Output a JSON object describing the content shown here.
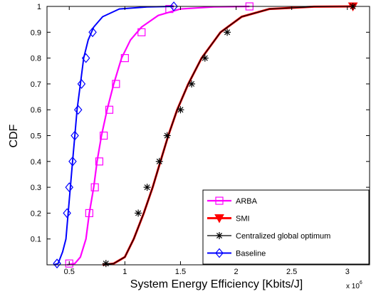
{
  "chart_data": {
    "type": "line",
    "xlabel": "System Energy Efficiency [Kbits/J]",
    "ylabel": "CDF",
    "x_multiplier_base": "x 10",
    "x_multiplier_exp": "6",
    "xlim": [
      0.3,
      3.2
    ],
    "ylim": [
      0,
      1
    ],
    "xticks": [
      0.5,
      1,
      1.5,
      2,
      2.5,
      3
    ],
    "xtick_labels": [
      "0.5",
      "1",
      "1.5",
      "2",
      "2.5",
      "3"
    ],
    "yticks": [
      0.1,
      0.2,
      0.3,
      0.4,
      0.5,
      0.6,
      0.7,
      0.8,
      0.9,
      1
    ],
    "ytick_labels": [
      "0.1",
      "0.2",
      "0.3",
      "0.4",
      "0.5",
      "0.6",
      "0.7",
      "0.8",
      "0.9",
      "1"
    ],
    "grid": false,
    "legend_position": "bottom-right",
    "series": [
      {
        "name": "ARBA",
        "color": "#ff00ff",
        "marker": "square",
        "points": [
          [
            0.48,
            0.0
          ],
          [
            0.55,
            0.005
          ],
          [
            0.6,
            0.03
          ],
          [
            0.65,
            0.1
          ],
          [
            0.68,
            0.2
          ],
          [
            0.72,
            0.3
          ],
          [
            0.75,
            0.4
          ],
          [
            0.79,
            0.5
          ],
          [
            0.84,
            0.6
          ],
          [
            0.9,
            0.7
          ],
          [
            0.97,
            0.8
          ],
          [
            1.05,
            0.87
          ],
          [
            1.15,
            0.92
          ],
          [
            1.3,
            0.965
          ],
          [
            1.5,
            0.99
          ],
          [
            1.8,
            0.998
          ],
          [
            2.12,
            1.0
          ]
        ],
        "marker_points": [
          [
            0.5,
            0.005
          ],
          [
            0.68,
            0.2
          ],
          [
            0.73,
            0.3
          ],
          [
            0.77,
            0.4
          ],
          [
            0.81,
            0.5
          ],
          [
            0.86,
            0.6
          ],
          [
            0.92,
            0.7
          ],
          [
            1.0,
            0.8
          ],
          [
            1.15,
            0.9
          ],
          [
            1.4,
            0.99
          ],
          [
            2.12,
            1.0
          ]
        ]
      },
      {
        "name": "SMI",
        "color": "#ff0000",
        "marker": "triangle-down",
        "points": [
          [
            0.8,
            0.0
          ],
          [
            0.9,
            0.005
          ],
          [
            1.0,
            0.03
          ],
          [
            1.08,
            0.1
          ],
          [
            1.17,
            0.2
          ],
          [
            1.25,
            0.3
          ],
          [
            1.32,
            0.4
          ],
          [
            1.39,
            0.5
          ],
          [
            1.47,
            0.6
          ],
          [
            1.57,
            0.7
          ],
          [
            1.69,
            0.8
          ],
          [
            1.86,
            0.9
          ],
          [
            2.05,
            0.96
          ],
          [
            2.3,
            0.99
          ],
          [
            2.7,
            0.999
          ],
          [
            3.05,
            1.0
          ]
        ],
        "marker_points": [
          [
            3.05,
            1.0
          ]
        ]
      },
      {
        "name": "Centralized global optimum",
        "color": "#000000",
        "marker": "asterisk",
        "points": [
          [
            0.8,
            0.0
          ],
          [
            0.9,
            0.005
          ],
          [
            1.0,
            0.03
          ],
          [
            1.08,
            0.1
          ],
          [
            1.17,
            0.2
          ],
          [
            1.25,
            0.3
          ],
          [
            1.32,
            0.4
          ],
          [
            1.39,
            0.5
          ],
          [
            1.47,
            0.6
          ],
          [
            1.57,
            0.7
          ],
          [
            1.69,
            0.8
          ],
          [
            1.86,
            0.9
          ],
          [
            2.05,
            0.96
          ],
          [
            2.3,
            0.99
          ],
          [
            2.7,
            0.999
          ],
          [
            3.05,
            1.0
          ]
        ],
        "marker_points": [
          [
            0.83,
            0.005
          ],
          [
            1.12,
            0.2
          ],
          [
            1.2,
            0.3
          ],
          [
            1.31,
            0.4
          ],
          [
            1.38,
            0.5
          ],
          [
            1.5,
            0.6
          ],
          [
            1.6,
            0.7
          ],
          [
            1.72,
            0.8
          ],
          [
            1.92,
            0.9
          ],
          [
            3.05,
            1.0
          ]
        ]
      },
      {
        "name": "Baseline",
        "color": "#0000ff",
        "marker": "diamond",
        "points": [
          [
            0.36,
            0.0
          ],
          [
            0.4,
            0.005
          ],
          [
            0.44,
            0.05
          ],
          [
            0.47,
            0.1
          ],
          [
            0.49,
            0.2
          ],
          [
            0.51,
            0.3
          ],
          [
            0.53,
            0.4
          ],
          [
            0.55,
            0.5
          ],
          [
            0.57,
            0.6
          ],
          [
            0.6,
            0.7
          ],
          [
            0.63,
            0.8
          ],
          [
            0.67,
            0.87
          ],
          [
            0.72,
            0.92
          ],
          [
            0.8,
            0.96
          ],
          [
            0.95,
            0.99
          ],
          [
            1.2,
            0.998
          ],
          [
            1.44,
            1.0
          ]
        ],
        "marker_points": [
          [
            0.39,
            0.005
          ],
          [
            0.48,
            0.2
          ],
          [
            0.5,
            0.3
          ],
          [
            0.53,
            0.4
          ],
          [
            0.55,
            0.5
          ],
          [
            0.58,
            0.6
          ],
          [
            0.61,
            0.7
          ],
          [
            0.65,
            0.8
          ],
          [
            0.71,
            0.9
          ],
          [
            1.44,
            1.0
          ]
        ]
      }
    ]
  }
}
